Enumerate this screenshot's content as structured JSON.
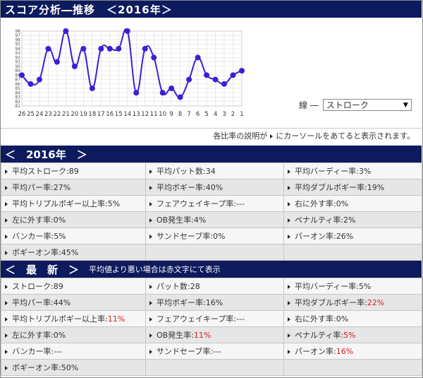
{
  "title": "スコア分析―推移　＜2016年＞",
  "chart_data": {
    "type": "line",
    "x": [
      "26",
      "25",
      "24",
      "23",
      "22",
      "21",
      "20",
      "19",
      "18",
      "17",
      "16",
      "15",
      "14",
      "13",
      "12",
      "11",
      "10",
      "9",
      "8",
      "7",
      "6",
      "5",
      "4",
      "3",
      "2",
      "1"
    ],
    "series": [
      {
        "values": [
          88,
          86,
          87,
          94,
          91,
          98,
          90,
          94,
          85,
          94,
          94,
          94,
          98,
          84,
          94,
          92,
          84,
          85,
          83,
          87,
          92,
          88,
          87,
          86,
          88,
          89
        ]
      }
    ],
    "ylim": [
      81,
      98
    ],
    "yticks": [
      "98",
      "97",
      "96",
      "95",
      "94",
      "93",
      "92",
      "91",
      "90",
      "89",
      "88",
      "87",
      "86",
      "85",
      "84",
      "83",
      "82",
      "81"
    ],
    "grid": true,
    "line_color": "#3b1fd6"
  },
  "selector": {
    "label": "線 ―",
    "value": "ストローク"
  },
  "note": {
    "before": "各比率の説明が",
    "after": "にカーソールをあてると表示されます。"
  },
  "year_section": {
    "title": "＜　2016年　＞",
    "cells": [
      {
        "label": "平均ストローク:",
        "value": "89"
      },
      {
        "label": "平均パット数:",
        "value": "34"
      },
      {
        "label": "平均バーディー率:",
        "value": "3%"
      },
      {
        "label": "平均パー率:",
        "value": "27%"
      },
      {
        "label": "平均ボギー率:",
        "value": "40%"
      },
      {
        "label": "平均ダブルボギー率:",
        "value": "19%"
      },
      {
        "label": "平均トリプルボギー以上率:",
        "value": "5%"
      },
      {
        "label": "フェアウェイキープ率:",
        "value": "---"
      },
      {
        "label": "右に外す率:",
        "value": "0%"
      },
      {
        "label": "左に外す率:",
        "value": "0%"
      },
      {
        "label": "OB発生率:",
        "value": "4%"
      },
      {
        "label": "ペナルティ率:",
        "value": "2%"
      },
      {
        "label": "バンカー率:",
        "value": "5%"
      },
      {
        "label": "サンドセーブ率:",
        "value": "0%"
      },
      {
        "label": "パーオン率:",
        "value": "26%"
      },
      {
        "label": "ボギーオン率:",
        "value": "45%"
      }
    ]
  },
  "latest_section": {
    "title": "＜　最　新　＞",
    "subtitle": "平均値より悪い場合は赤文字にて表示",
    "cells": [
      {
        "label": "ストローク:",
        "value": "89"
      },
      {
        "label": "パット数:",
        "value": "28"
      },
      {
        "label": "平均バーディー率:",
        "value": "5%"
      },
      {
        "label": "平均パー率:",
        "value": "44%"
      },
      {
        "label": "平均ボギー率:",
        "value": "16%"
      },
      {
        "label": "平均ダブルボギー率:",
        "value": "22%",
        "worse": true
      },
      {
        "label": "平均トリプルボギー以上率:",
        "value": "11%",
        "worse": true
      },
      {
        "label": "フェアウェイキープ率:",
        "value": "---"
      },
      {
        "label": "右に外す率:",
        "value": "0%"
      },
      {
        "label": "左に外す率:",
        "value": "0%"
      },
      {
        "label": "OB発生率:",
        "value": "11%",
        "worse": true
      },
      {
        "label": "ペナルティ率:",
        "value": "5%",
        "worse": true
      },
      {
        "label": "バンカー率:",
        "value": "---"
      },
      {
        "label": "サンドセーブ率:",
        "value": "---"
      },
      {
        "label": "パーオン率:",
        "value": "16%",
        "worse": true
      },
      {
        "label": "ボギーオン率:",
        "value": "50%"
      }
    ]
  }
}
